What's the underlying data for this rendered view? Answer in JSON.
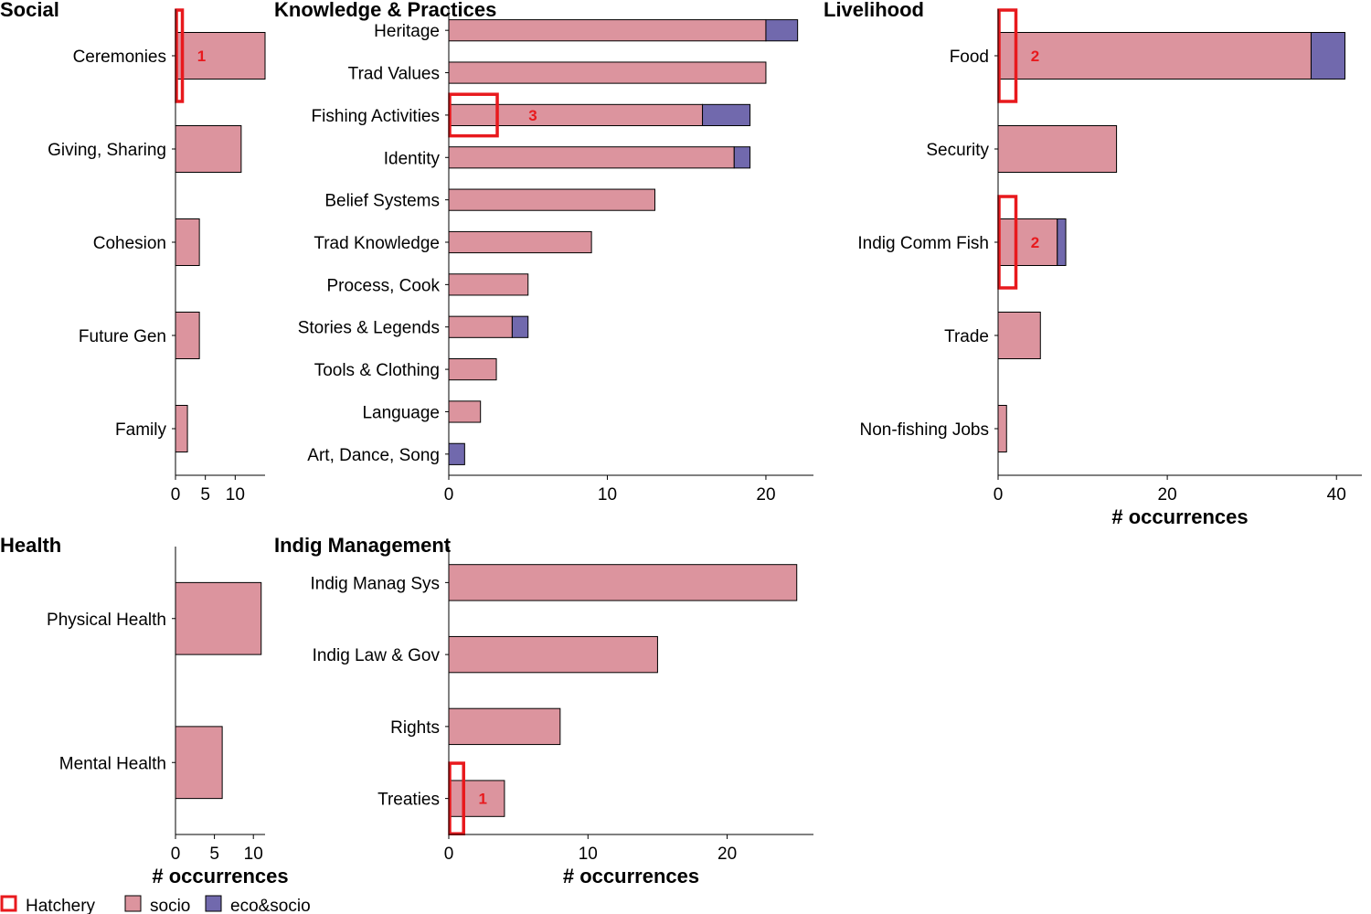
{
  "legend": {
    "items": [
      {
        "label": "Hatchery",
        "kind": "outline",
        "color": "#e8191d"
      },
      {
        "label": "socio",
        "kind": "fill",
        "color": "#dc949e"
      },
      {
        "label": "eco&socio",
        "kind": "fill",
        "color": "#7169ad"
      }
    ]
  },
  "colors": {
    "socio": "#dc949e",
    "eco_socio": "#7169ad",
    "hatchery": "#e8191d",
    "bar_outline": "#000000"
  },
  "chart_data": [
    {
      "type": "bar",
      "orientation": "horizontal",
      "stacked": true,
      "title": "Social",
      "xlabel": "",
      "xlim": [
        0,
        15
      ],
      "xticks": [
        0,
        5,
        10
      ],
      "categories": [
        "Ceremonies",
        "Giving, Sharing",
        "Cohesion",
        "Future Gen",
        "Family"
      ],
      "series": [
        {
          "name": "socio",
          "values": [
            15,
            11,
            4,
            4,
            2
          ]
        },
        {
          "name": "eco&socio",
          "values": [
            0,
            0,
            0,
            0,
            0
          ]
        }
      ],
      "hatchery": [
        {
          "category": "Ceremonies",
          "value": 1,
          "label": "1"
        }
      ]
    },
    {
      "type": "bar",
      "orientation": "horizontal",
      "stacked": true,
      "title": "Knowledge & Practices",
      "xlabel": "",
      "xlim": [
        0,
        23
      ],
      "xticks": [
        0,
        10,
        20
      ],
      "categories": [
        "Heritage",
        "Trad Values",
        "Fishing Activities",
        "Identity",
        "Belief Systems",
        "Trad Knowledge",
        "Process, Cook",
        "Stories & Legends",
        "Tools & Clothing",
        "Language",
        "Art, Dance, Song"
      ],
      "series": [
        {
          "name": "socio",
          "values": [
            20,
            20,
            16,
            18,
            13,
            9,
            5,
            4,
            3,
            2,
            0
          ]
        },
        {
          "name": "eco&socio",
          "values": [
            2,
            0,
            3,
            1,
            0,
            0,
            0,
            1,
            0,
            0,
            1
          ]
        }
      ],
      "hatchery": [
        {
          "category": "Fishing Activities",
          "value": 3,
          "label": "3"
        }
      ]
    },
    {
      "type": "bar",
      "orientation": "horizontal",
      "stacked": true,
      "title": "Livelihood",
      "xlabel": "# occurrences",
      "xlim": [
        0,
        43
      ],
      "xticks": [
        0,
        20,
        40
      ],
      "categories": [
        "Food",
        "Security",
        "Indig Comm Fish",
        "Trade",
        "Non-fishing Jobs"
      ],
      "series": [
        {
          "name": "socio",
          "values": [
            37,
            14,
            7,
            5,
            1
          ]
        },
        {
          "name": "eco&socio",
          "values": [
            4,
            0,
            1,
            0,
            0
          ]
        }
      ],
      "hatchery": [
        {
          "category": "Food",
          "value": 2,
          "label": "2"
        },
        {
          "category": "Indig Comm Fish",
          "value": 2,
          "label": "2"
        }
      ]
    },
    {
      "type": "bar",
      "orientation": "horizontal",
      "stacked": true,
      "title": "Health",
      "xlabel": "# occurrences",
      "xlim": [
        0,
        11.5
      ],
      "xticks": [
        0,
        5,
        10
      ],
      "categories": [
        "Physical Health",
        "Mental Health"
      ],
      "series": [
        {
          "name": "socio",
          "values": [
            11,
            6
          ]
        },
        {
          "name": "eco&socio",
          "values": [
            0,
            0
          ]
        }
      ],
      "hatchery": []
    },
    {
      "type": "bar",
      "orientation": "horizontal",
      "stacked": true,
      "title": "Indig Management",
      "xlabel": "# occurrences",
      "xlim": [
        0,
        26.2
      ],
      "xticks": [
        0,
        10,
        20
      ],
      "categories": [
        "Indig Manag Sys",
        "Indig Law & Gov",
        "Rights",
        "Treaties"
      ],
      "series": [
        {
          "name": "socio",
          "values": [
            25,
            15,
            8,
            4
          ]
        },
        {
          "name": "eco&socio",
          "values": [
            0,
            0,
            0,
            0
          ]
        }
      ],
      "hatchery": [
        {
          "category": "Treaties",
          "value": 1,
          "label": "1"
        }
      ]
    }
  ]
}
